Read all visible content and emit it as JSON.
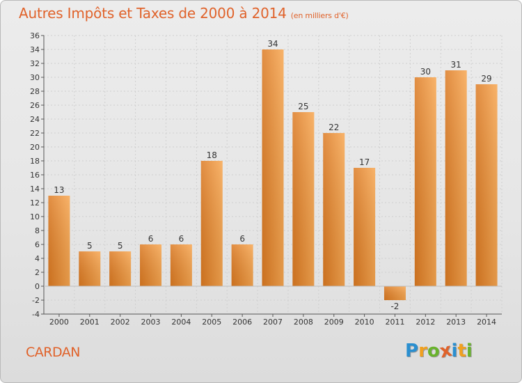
{
  "title": "Autres Impôts et Taxes de 2000 à 2014",
  "subtitle": "(en milliers d'€)",
  "commune": "CARDAN",
  "logo": {
    "letters": [
      "P",
      "r",
      "o",
      "x",
      "i",
      "t",
      "i"
    ],
    "colors": [
      "#2a8fd0",
      "#f0a020",
      "#69b32d",
      "#e0622a",
      "#2a8fd0",
      "#f0a020",
      "#69b32d"
    ]
  },
  "colors": {
    "bar_light": "#f7a650",
    "bar_dark": "#dc7a22",
    "title": "#e0622a",
    "axis": "#555555",
    "grid": "#cfcfcf"
  },
  "chart_data": {
    "type": "bar",
    "title": "Autres Impôts et Taxes de 2000 à 2014",
    "subtitle": "(en milliers d'€)",
    "categories": [
      "2000",
      "2001",
      "2002",
      "2003",
      "2004",
      "2005",
      "2006",
      "2007",
      "2008",
      "2009",
      "2010",
      "2011",
      "2012",
      "2013",
      "2014"
    ],
    "values": [
      13,
      5,
      5,
      6,
      6,
      18,
      6,
      34,
      25,
      22,
      17,
      -2,
      30,
      31,
      29
    ],
    "ylim": [
      -4,
      36
    ],
    "yticks": [
      -4,
      -2,
      0,
      2,
      4,
      6,
      8,
      10,
      12,
      14,
      16,
      18,
      20,
      22,
      24,
      26,
      28,
      30,
      32,
      34,
      36
    ],
    "grid": true,
    "legend": "none"
  }
}
